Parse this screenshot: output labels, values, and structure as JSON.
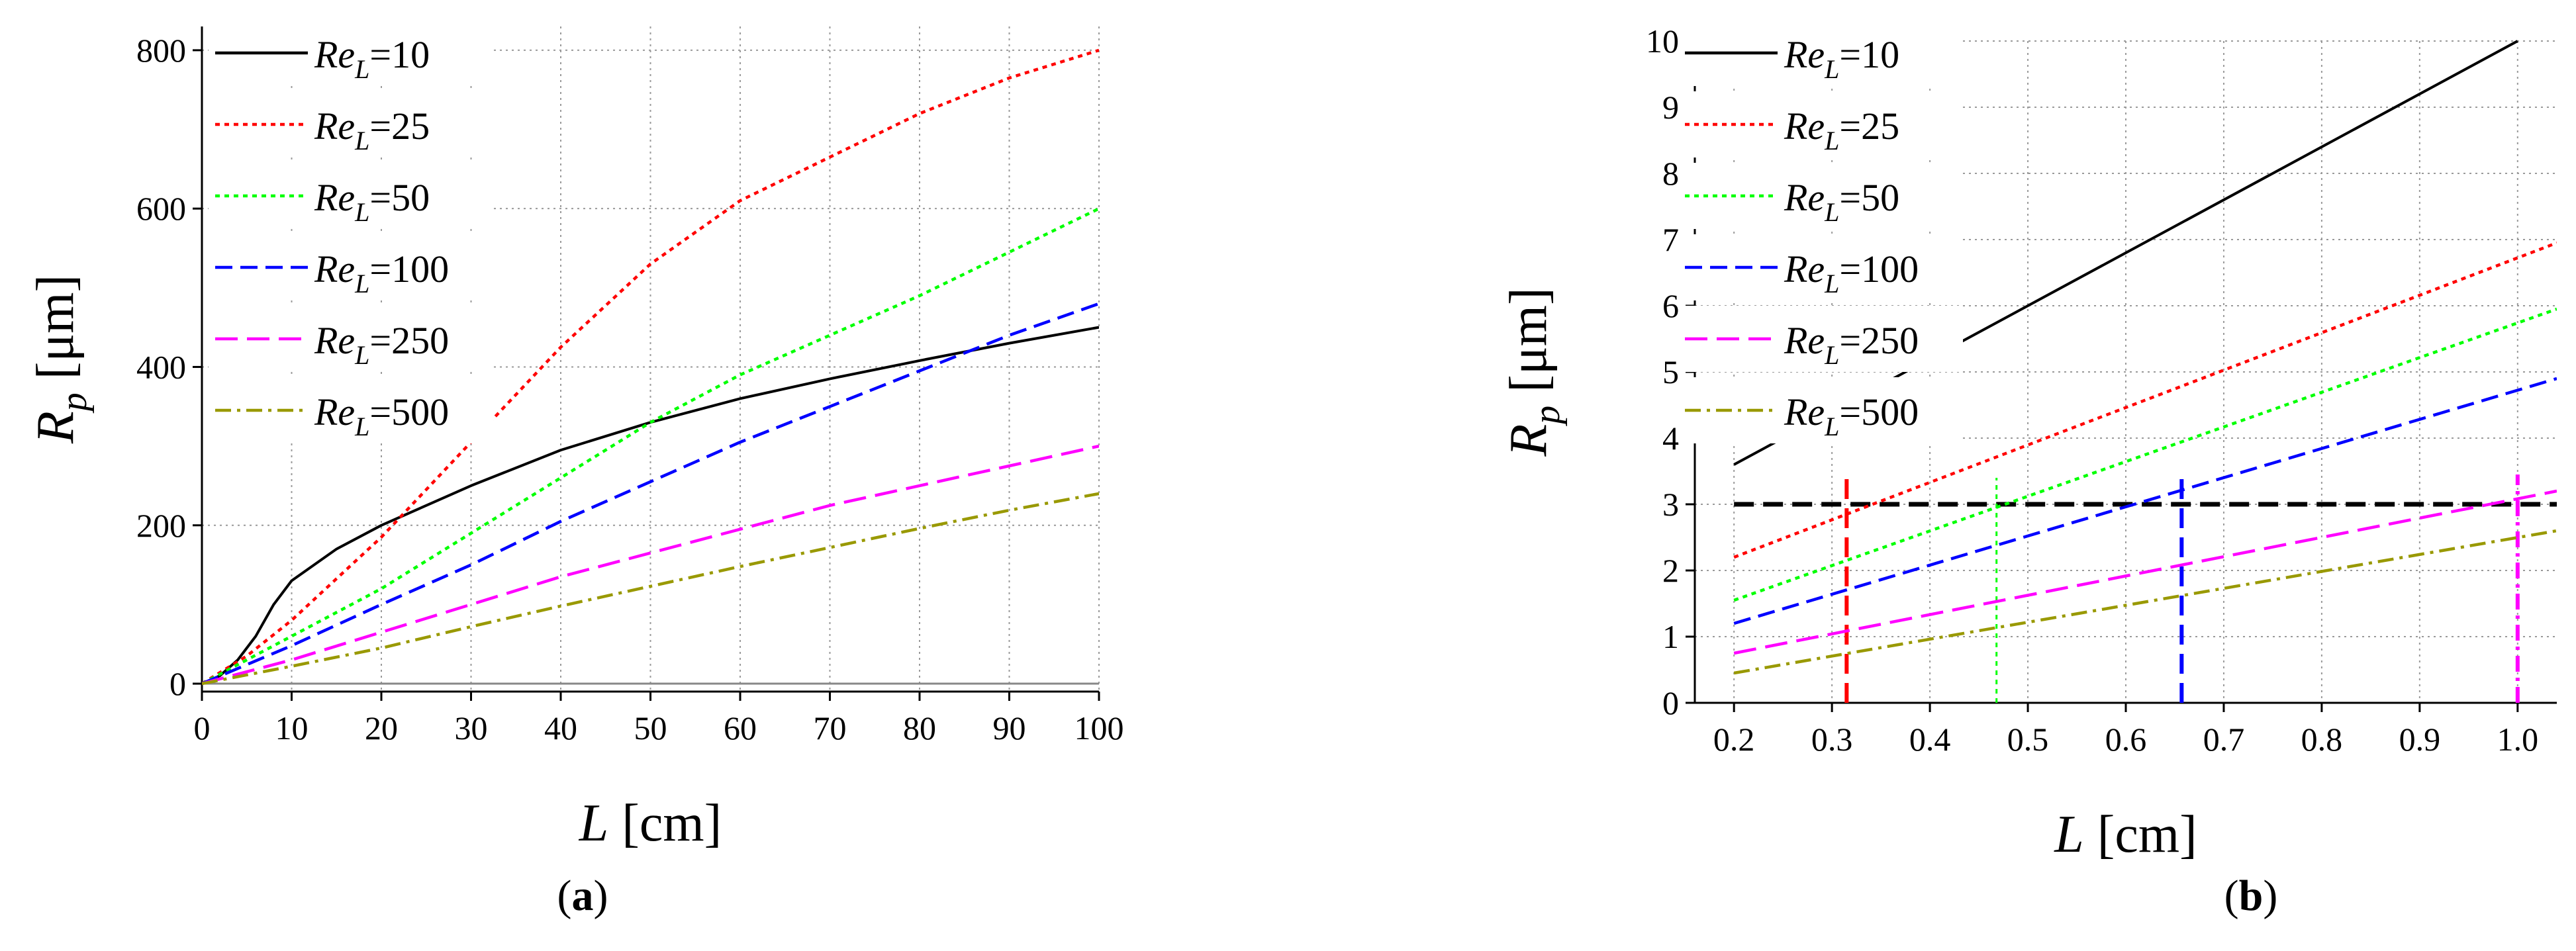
{
  "figure": {
    "panel_labels": [
      "a",
      "b"
    ]
  },
  "chart_data": [
    {
      "id": "a",
      "type": "line",
      "xlabel_var": "L",
      "xlabel_unit": "[cm]",
      "ylabel_var": "R",
      "ylabel_sub": "p",
      "ylabel_unit": "[μm]",
      "xlim": [
        0,
        100
      ],
      "ylim": [
        -10,
        830
      ],
      "xticks": [
        0,
        10,
        20,
        30,
        40,
        50,
        60,
        70,
        80,
        90,
        100
      ],
      "yticks": [
        0,
        200,
        400,
        600,
        800
      ],
      "grid": true,
      "legend_position": "top-left",
      "series": [
        {
          "name_var": "Re",
          "name_sub": "L",
          "name_val": "=10",
          "color": "#000000",
          "dash": "solid",
          "x": [
            0,
            2,
            4,
            6,
            8,
            10,
            15,
            20,
            30,
            40,
            50,
            60,
            70,
            80,
            90,
            100
          ],
          "values": [
            0,
            10,
            30,
            60,
            100,
            130,
            170,
            200,
            250,
            295,
            330,
            360,
            385,
            408,
            430,
            450
          ]
        },
        {
          "name_var": "Re",
          "name_sub": "L",
          "name_val": "=25",
          "color": "#ff0000",
          "dash": "dot",
          "x": [
            0,
            5,
            10,
            20,
            30,
            40,
            50,
            60,
            70,
            80,
            90,
            100
          ],
          "values": [
            0,
            35,
            80,
            185,
            305,
            425,
            530,
            610,
            665,
            720,
            765,
            800
          ]
        },
        {
          "name_var": "Re",
          "name_sub": "L",
          "name_val": "=50",
          "color": "#00ff00",
          "dash": "dot",
          "x": [
            0,
            5,
            10,
            20,
            30,
            40,
            50,
            60,
            70,
            80,
            90,
            100
          ],
          "values": [
            0,
            30,
            60,
            120,
            190,
            260,
            330,
            390,
            440,
            490,
            545,
            600
          ]
        },
        {
          "name_var": "Re",
          "name_sub": "L",
          "name_val": "=100",
          "color": "#0000ff",
          "dash": "dash",
          "x": [
            0,
            10,
            20,
            30,
            40,
            50,
            60,
            70,
            80,
            90,
            100
          ],
          "values": [
            0,
            48,
            100,
            150,
            205,
            255,
            305,
            350,
            395,
            440,
            480
          ]
        },
        {
          "name_var": "Re",
          "name_sub": "L",
          "name_val": "=250",
          "color": "#ff00ff",
          "dash": "longdash",
          "x": [
            0,
            10,
            20,
            30,
            40,
            50,
            60,
            70,
            80,
            90,
            100
          ],
          "values": [
            0,
            30,
            65,
            100,
            135,
            165,
            195,
            225,
            250,
            275,
            300
          ]
        },
        {
          "name_var": "Re",
          "name_sub": "L",
          "name_val": "=500",
          "color": "#999900",
          "dash": "dashdot",
          "x": [
            0,
            10,
            20,
            30,
            40,
            50,
            60,
            70,
            80,
            90,
            100
          ],
          "values": [
            0,
            22,
            45,
            72,
            98,
            123,
            148,
            172,
            196,
            219,
            240
          ]
        }
      ]
    },
    {
      "id": "b",
      "type": "line",
      "xlabel_var": "L",
      "xlabel_unit": "[cm]",
      "ylabel_var": "R",
      "ylabel_sub": "p",
      "ylabel_unit": "[μm]",
      "xlim": [
        0.16,
        1.04
      ],
      "ylim": [
        0,
        10
      ],
      "xticks": [
        0.2,
        0.3,
        0.4,
        0.5,
        0.6,
        0.7,
        0.8,
        0.9,
        1.0
      ],
      "xtick_labels": [
        "0.2",
        "0.3",
        "0.4",
        "0.5",
        "0.6",
        "0.7",
        "0.8",
        "0.9",
        "1.0"
      ],
      "yticks": [
        0,
        1,
        2,
        3,
        4,
        5,
        6,
        7,
        8,
        9,
        10
      ],
      "grid": true,
      "legend_position": "top-left",
      "series": [
        {
          "name_var": "Re",
          "name_sub": "L",
          "name_val": "=10",
          "color": "#000000",
          "dash": "solid",
          "x": [
            0.2,
            1.0
          ],
          "values": [
            3.6,
            10.0
          ]
        },
        {
          "name_var": "Re",
          "name_sub": "L",
          "name_val": "=25",
          "color": "#ff0000",
          "dash": "dot",
          "x": [
            0.2,
            1.04
          ],
          "values": [
            2.2,
            6.95
          ]
        },
        {
          "name_var": "Re",
          "name_sub": "L",
          "name_val": "=50",
          "color": "#00ff00",
          "dash": "dot",
          "x": [
            0.2,
            1.04
          ],
          "values": [
            1.55,
            5.95
          ]
        },
        {
          "name_var": "Re",
          "name_sub": "L",
          "name_val": "=100",
          "color": "#0000ff",
          "dash": "dash",
          "x": [
            0.2,
            1.04
          ],
          "values": [
            1.2,
            4.9
          ]
        },
        {
          "name_var": "Re",
          "name_sub": "L",
          "name_val": "=250",
          "color": "#ff00ff",
          "dash": "longdash",
          "x": [
            0.2,
            1.04
          ],
          "values": [
            0.75,
            3.2
          ]
        },
        {
          "name_var": "Re",
          "name_sub": "L",
          "name_val": "=500",
          "color": "#999900",
          "dash": "dashdot",
          "x": [
            0.2,
            1.04
          ],
          "values": [
            0.45,
            2.6
          ]
        }
      ],
      "reference_lines": [
        {
          "name": "threshold-line",
          "orientation": "horizontal",
          "value": 3,
          "color": "#000000",
          "dash": "bigdash"
        },
        {
          "name": "vline-re25",
          "orientation": "vertical",
          "value": 0.315,
          "from": 0,
          "to": 3.45,
          "color": "#ff0000",
          "dash": "bigdash"
        },
        {
          "name": "vline-re50",
          "orientation": "vertical",
          "value": 0.468,
          "from": 0,
          "to": 3.4,
          "color": "#00ff00",
          "dash": "dot"
        },
        {
          "name": "vline-re100",
          "orientation": "vertical",
          "value": 0.657,
          "from": 0,
          "to": 3.45,
          "color": "#0000ff",
          "dash": "bigdash"
        },
        {
          "name": "vline-re250",
          "orientation": "vertical",
          "value": 1.0,
          "from": 0,
          "to": 3.45,
          "color": "#ff00ff",
          "dash": "dashdot"
        }
      ]
    }
  ]
}
